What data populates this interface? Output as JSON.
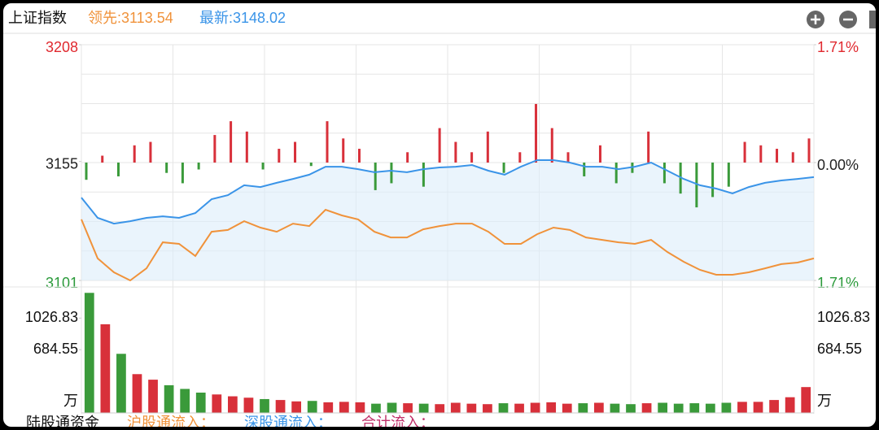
{
  "header": {
    "title": "上证指数",
    "lead": "领先:3113.54",
    "latest": "最新:3148.02"
  },
  "chart_data": [
    {
      "type": "line",
      "ylim": [
        3101,
        3208
      ],
      "yticks": [
        3208,
        3155,
        3101
      ],
      "ytick_colors": [
        "#e0292f",
        "#222222",
        "#2a9a3a"
      ],
      "y2lim": [
        -1.71,
        1.71
      ],
      "y2ticks": [
        {
          "value": 1.71,
          "label": "1.71%"
        },
        {
          "value": 0,
          "label": "0.00%"
        },
        {
          "value": -1.71,
          "label": "1.71%"
        }
      ],
      "y2tick_colors": [
        "#e0292f",
        "#222222",
        "#2a9a3a"
      ],
      "grid": true,
      "series": [
        {
          "type": "line",
          "color": "#f0923a",
          "values": [
            3128.7,
            3111.0,
            3104.7,
            3101.0,
            3106.5,
            3118.3,
            3117.6,
            3112.1,
            3123.1,
            3123.9,
            3127.9,
            3125.0,
            3123.1,
            3126.8,
            3125.7,
            3133.1,
            3130.5,
            3128.7,
            3123.1,
            3120.5,
            3120.5,
            3124.2,
            3125.7,
            3126.8,
            3126.8,
            3123.1,
            3117.6,
            3117.6,
            3122.0,
            3125.0,
            3123.9,
            3120.5,
            3119.4,
            3118.3,
            3117.6,
            3119.4,
            3113.9,
            3109.5,
            3105.8,
            3103.6,
            3103.6,
            3104.7,
            3106.5,
            3108.4,
            3109.1,
            3111.0
          ]
        },
        {
          "type": "line",
          "color": "#3a94e8",
          "fill": "#dcecfa",
          "values": [
            3138.6,
            3129.4,
            3126.8,
            3127.9,
            3129.4,
            3130.1,
            3129.4,
            3131.6,
            3137.9,
            3139.7,
            3144.2,
            3143.4,
            3145.3,
            3147.1,
            3149.0,
            3152.6,
            3152.6,
            3151.5,
            3150.1,
            3150.8,
            3150.1,
            3151.5,
            3152.3,
            3152.6,
            3153.4,
            3150.8,
            3149.0,
            3152.6,
            3155.6,
            3155.6,
            3154.5,
            3152.6,
            3152.6,
            3151.5,
            3152.6,
            3154.5,
            3150.8,
            3147.1,
            3144.2,
            3142.7,
            3140.5,
            3143.4,
            3145.3,
            3146.4,
            3147.1,
            3147.9
          ]
        },
        {
          "type": "bar",
          "axis": "y2",
          "up_color": "#d8303a",
          "down_color": "#3a9a3a",
          "values": [
            -0.25,
            0.1,
            -0.2,
            0.25,
            0.3,
            -0.15,
            -0.3,
            -0.1,
            0.4,
            0.6,
            0.45,
            -0.1,
            0.2,
            0.3,
            -0.05,
            0.6,
            0.35,
            0.2,
            -0.4,
            -0.3,
            0.15,
            -0.35,
            0.5,
            0.3,
            0.15,
            0.45,
            -0.15,
            0.15,
            0.85,
            0.5,
            0.15,
            -0.2,
            0.25,
            -0.3,
            -0.15,
            0.45,
            -0.3,
            -0.45,
            -0.65,
            -0.5,
            -0.35,
            0.3,
            0.25,
            0.2,
            0.15,
            0.35
          ]
        }
      ]
    },
    {
      "type": "bar",
      "unit": "万",
      "ylim": [
        0,
        1320
      ],
      "yticks": [
        1026.83,
        684.55
      ],
      "up_color": "#d8303a",
      "down_color": "#3a9a3a",
      "values": [
        1300,
        960,
        640,
        420,
        360,
        300,
        260,
        220,
        200,
        180,
        165,
        150,
        140,
        125,
        130,
        115,
        120,
        115,
        100,
        110,
        105,
        100,
        95,
        110,
        100,
        95,
        105,
        100,
        110,
        115,
        100,
        105,
        110,
        100,
        95,
        105,
        110,
        100,
        105,
        100,
        110,
        120,
        120,
        140,
        170,
        280
      ]
    }
  ],
  "footer": {
    "label": "陆股通资金",
    "sh": "沪股通流入：",
    "sz": "深股通流入：",
    "total": "合计流入："
  }
}
